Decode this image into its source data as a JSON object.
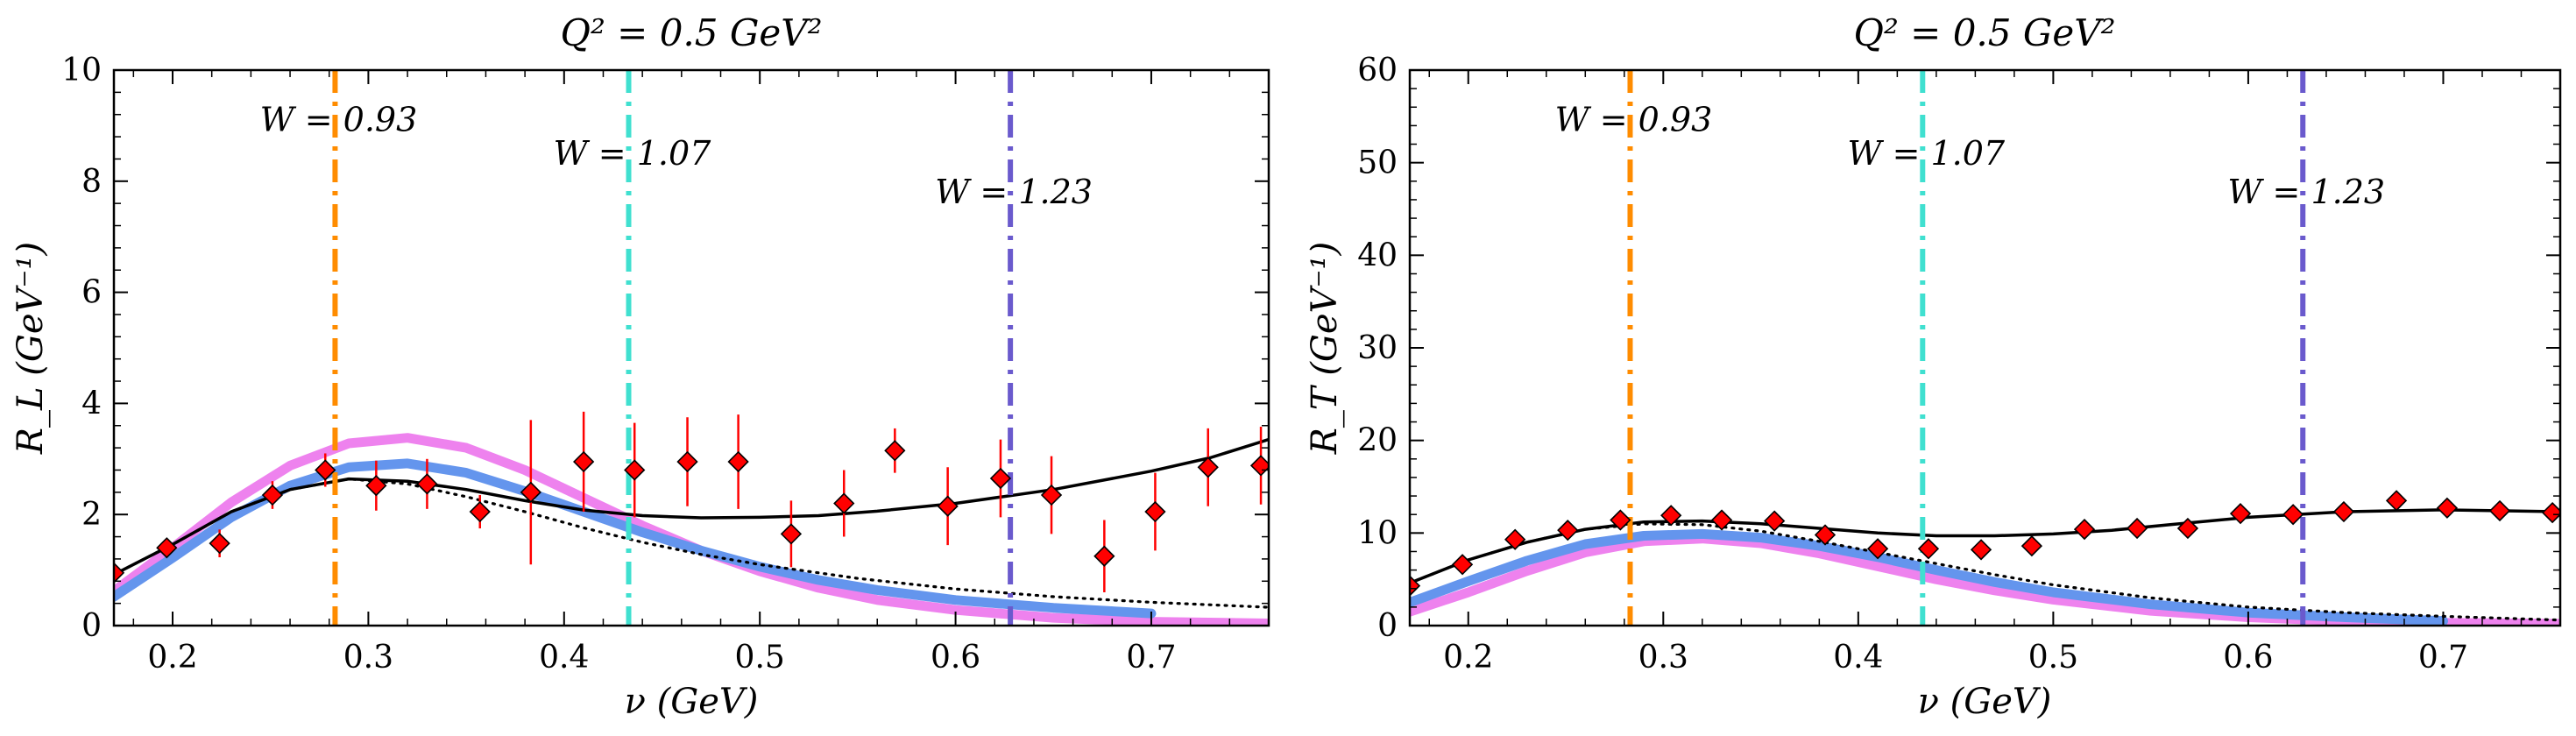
{
  "chart_data": [
    {
      "type": "line",
      "title": "Q² = 0.5 GeV²",
      "xlabel": "ν (GeV)",
      "ylabel": "R_L (GeV⁻¹)",
      "xlim": [
        0.17,
        0.76
      ],
      "ylim": [
        0,
        10
      ],
      "xticks": [
        "0.2",
        "0.3",
        "0.4",
        "0.5",
        "0.6",
        "0.7"
      ],
      "xtick_values": [
        0.2,
        0.3,
        0.4,
        0.5,
        0.6,
        0.7
      ],
      "yticks": [
        "0",
        "2",
        "4",
        "6",
        "8",
        "10"
      ],
      "ytick_values": [
        0,
        2,
        4,
        6,
        8,
        10
      ],
      "grid": false,
      "vlines": [
        {
          "x": 0.283,
          "label": "W = 0.93",
          "label_y": 8.9,
          "color": "#FF8C00"
        },
        {
          "x": 0.433,
          "label": "W = 1.07",
          "label_y": 8.3,
          "color": "#40E0D0"
        },
        {
          "x": 0.628,
          "label": "W = 1.23",
          "label_y": 7.6,
          "color": "#6A5ACD"
        }
      ],
      "series": [
        {
          "style": "pink",
          "color": "#EE82EE",
          "points": [
            [
              0.17,
              0.62
            ],
            [
              0.2,
              1.4
            ],
            [
              0.23,
              2.22
            ],
            [
              0.26,
              2.88
            ],
            [
              0.29,
              3.28
            ],
            [
              0.32,
              3.38
            ],
            [
              0.35,
              3.2
            ],
            [
              0.38,
              2.8
            ],
            [
              0.41,
              2.3
            ],
            [
              0.44,
              1.8
            ],
            [
              0.47,
              1.35
            ],
            [
              0.5,
              0.98
            ],
            [
              0.53,
              0.68
            ],
            [
              0.56,
              0.46
            ],
            [
              0.6,
              0.28
            ],
            [
              0.65,
              0.14
            ],
            [
              0.7,
              0.07
            ],
            [
              0.76,
              0.04
            ]
          ]
        },
        {
          "style": "blue",
          "color": "#6495ED",
          "points": [
            [
              0.17,
              0.52
            ],
            [
              0.2,
              1.22
            ],
            [
              0.23,
              1.95
            ],
            [
              0.26,
              2.52
            ],
            [
              0.29,
              2.85
            ],
            [
              0.32,
              2.92
            ],
            [
              0.35,
              2.75
            ],
            [
              0.38,
              2.42
            ],
            [
              0.41,
              2.05
            ],
            [
              0.44,
              1.68
            ],
            [
              0.47,
              1.35
            ],
            [
              0.5,
              1.06
            ],
            [
              0.53,
              0.82
            ],
            [
              0.56,
              0.64
            ],
            [
              0.6,
              0.46
            ],
            [
              0.65,
              0.32
            ],
            [
              0.7,
              0.22
            ]
          ]
        },
        {
          "style": "dotted",
          "color": "#000000",
          "points": [
            [
              0.17,
              0.92
            ],
            [
              0.2,
              1.46
            ],
            [
              0.23,
              2.05
            ],
            [
              0.26,
              2.45
            ],
            [
              0.29,
              2.64
            ],
            [
              0.32,
              2.55
            ],
            [
              0.35,
              2.32
            ],
            [
              0.38,
              2.05
            ],
            [
              0.41,
              1.76
            ],
            [
              0.44,
              1.5
            ],
            [
              0.47,
              1.28
            ],
            [
              0.5,
              1.1
            ],
            [
              0.55,
              0.85
            ],
            [
              0.6,
              0.66
            ],
            [
              0.65,
              0.52
            ],
            [
              0.7,
              0.42
            ],
            [
              0.76,
              0.33
            ]
          ]
        },
        {
          "style": "solid",
          "color": "#000000",
          "points": [
            [
              0.17,
              0.92
            ],
            [
              0.2,
              1.46
            ],
            [
              0.23,
              2.05
            ],
            [
              0.26,
              2.45
            ],
            [
              0.29,
              2.64
            ],
            [
              0.32,
              2.6
            ],
            [
              0.35,
              2.45
            ],
            [
              0.38,
              2.25
            ],
            [
              0.41,
              2.08
            ],
            [
              0.44,
              1.98
            ],
            [
              0.47,
              1.94
            ],
            [
              0.5,
              1.95
            ],
            [
              0.53,
              1.98
            ],
            [
              0.56,
              2.06
            ],
            [
              0.6,
              2.2
            ],
            [
              0.65,
              2.45
            ],
            [
              0.7,
              2.78
            ],
            [
              0.73,
              3.02
            ],
            [
              0.76,
              3.35
            ]
          ]
        }
      ],
      "data_points": [
        [
          0.17,
          0.95,
          0.18
        ],
        [
          0.197,
          1.4,
          0.15
        ],
        [
          0.224,
          1.48,
          0.25
        ],
        [
          0.251,
          2.35,
          0.25
        ],
        [
          0.278,
          2.8,
          0.3
        ],
        [
          0.304,
          2.52,
          0.45
        ],
        [
          0.33,
          2.55,
          0.45
        ],
        [
          0.357,
          2.05,
          0.3
        ],
        [
          0.383,
          2.4,
          1.3
        ],
        [
          0.41,
          2.95,
          0.9
        ],
        [
          0.436,
          2.8,
          0.85
        ],
        [
          0.463,
          2.95,
          0.8
        ],
        [
          0.489,
          2.95,
          0.85
        ],
        [
          0.516,
          1.65,
          0.6
        ],
        [
          0.543,
          2.2,
          0.6
        ],
        [
          0.569,
          3.15,
          0.4
        ],
        [
          0.596,
          2.15,
          0.7
        ],
        [
          0.623,
          2.65,
          0.7
        ],
        [
          0.649,
          2.35,
          0.7
        ],
        [
          0.676,
          1.25,
          0.65
        ],
        [
          0.702,
          2.05,
          0.7
        ],
        [
          0.729,
          2.85,
          0.7
        ],
        [
          0.756,
          2.88,
          0.7
        ]
      ]
    },
    {
      "type": "line",
      "title": "Q² = 0.5 GeV²",
      "xlabel": "ν (GeV)",
      "ylabel": "R_T (GeV⁻¹)",
      "xlim": [
        0.17,
        0.76
      ],
      "ylim": [
        0,
        60
      ],
      "xticks": [
        "0.2",
        "0.3",
        "0.4",
        "0.5",
        "0.6",
        "0.7"
      ],
      "xtick_values": [
        0.2,
        0.3,
        0.4,
        0.5,
        0.6,
        0.7
      ],
      "yticks": [
        "0",
        "10",
        "20",
        "30",
        "40",
        "50",
        "60"
      ],
      "ytick_values": [
        0,
        10,
        20,
        30,
        40,
        50,
        60
      ],
      "grid": false,
      "vlines": [
        {
          "x": 0.283,
          "label": "W = 0.93",
          "label_y": 53.4,
          "color": "#FF8C00"
        },
        {
          "x": 0.433,
          "label": "W = 1.07",
          "label_y": 49.8,
          "color": "#40E0D0"
        },
        {
          "x": 0.628,
          "label": "W = 1.23",
          "label_y": 45.6,
          "color": "#6A5ACD"
        }
      ],
      "series": [
        {
          "style": "pink",
          "color": "#EE82EE",
          "points": [
            [
              0.17,
              1.5
            ],
            [
              0.2,
              3.6
            ],
            [
              0.23,
              5.9
            ],
            [
              0.26,
              7.9
            ],
            [
              0.29,
              9.1
            ],
            [
              0.32,
              9.4
            ],
            [
              0.35,
              8.9
            ],
            [
              0.38,
              7.8
            ],
            [
              0.41,
              6.4
            ],
            [
              0.44,
              5.0
            ],
            [
              0.47,
              3.8
            ],
            [
              0.5,
              2.8
            ],
            [
              0.55,
              1.6
            ],
            [
              0.6,
              0.9
            ],
            [
              0.65,
              0.5
            ],
            [
              0.7,
              0.3
            ],
            [
              0.76,
              0.2
            ]
          ]
        },
        {
          "style": "blue",
          "color": "#6495ED",
          "points": [
            [
              0.17,
              2.5
            ],
            [
              0.2,
              4.8
            ],
            [
              0.23,
              7.0
            ],
            [
              0.26,
              8.8
            ],
            [
              0.29,
              9.7
            ],
            [
              0.32,
              9.9
            ],
            [
              0.35,
              9.5
            ],
            [
              0.38,
              8.6
            ],
            [
              0.41,
              7.4
            ],
            [
              0.44,
              6.0
            ],
            [
              0.47,
              4.7
            ],
            [
              0.5,
              3.6
            ],
            [
              0.55,
              2.3
            ],
            [
              0.6,
              1.4
            ],
            [
              0.65,
              0.9
            ],
            [
              0.7,
              0.5
            ]
          ]
        },
        {
          "style": "dotted",
          "color": "#000000",
          "points": [
            [
              0.17,
              4.6
            ],
            [
              0.2,
              7.1
            ],
            [
              0.23,
              9.0
            ],
            [
              0.26,
              10.4
            ],
            [
              0.29,
              11.0
            ],
            [
              0.32,
              10.9
            ],
            [
              0.35,
              10.2
            ],
            [
              0.38,
              9.1
            ],
            [
              0.41,
              7.9
            ],
            [
              0.44,
              6.7
            ],
            [
              0.47,
              5.5
            ],
            [
              0.5,
              4.4
            ],
            [
              0.55,
              3.0
            ],
            [
              0.6,
              2.0
            ],
            [
              0.65,
              1.4
            ],
            [
              0.7,
              1.0
            ],
            [
              0.76,
              0.6
            ]
          ]
        },
        {
          "style": "solid",
          "color": "#000000",
          "points": [
            [
              0.17,
              4.6
            ],
            [
              0.2,
              7.1
            ],
            [
              0.23,
              9.0
            ],
            [
              0.26,
              10.4
            ],
            [
              0.29,
              11.2
            ],
            [
              0.32,
              11.3
            ],
            [
              0.35,
              11.0
            ],
            [
              0.38,
              10.5
            ],
            [
              0.41,
              10.0
            ],
            [
              0.44,
              9.7
            ],
            [
              0.47,
              9.7
            ],
            [
              0.5,
              9.9
            ],
            [
              0.53,
              10.3
            ],
            [
              0.56,
              10.9
            ],
            [
              0.6,
              11.7
            ],
            [
              0.65,
              12.3
            ],
            [
              0.7,
              12.5
            ],
            [
              0.76,
              12.3
            ]
          ]
        }
      ],
      "data_points": [
        [
          0.17,
          4.3,
          0.5
        ],
        [
          0.197,
          6.6,
          0.5
        ],
        [
          0.224,
          9.3,
          0.5
        ],
        [
          0.251,
          10.3,
          0.5
        ],
        [
          0.278,
          11.4,
          0.6
        ],
        [
          0.304,
          11.9,
          0.6
        ],
        [
          0.33,
          11.4,
          0.6
        ],
        [
          0.357,
          11.3,
          0.6
        ],
        [
          0.383,
          9.8,
          0.6
        ],
        [
          0.41,
          8.3,
          0.6
        ],
        [
          0.436,
          8.3,
          0.6
        ],
        [
          0.463,
          8.2,
          0.6
        ],
        [
          0.489,
          8.6,
          0.6
        ],
        [
          0.516,
          10.4,
          0.6
        ],
        [
          0.543,
          10.5,
          0.6
        ],
        [
          0.569,
          10.5,
          0.6
        ],
        [
          0.596,
          12.1,
          0.6
        ],
        [
          0.623,
          12.0,
          0.6
        ],
        [
          0.649,
          12.3,
          0.6
        ],
        [
          0.676,
          13.5,
          0.6
        ],
        [
          0.702,
          12.7,
          0.6
        ],
        [
          0.729,
          12.4,
          0.6
        ],
        [
          0.756,
          12.2,
          0.6
        ]
      ]
    }
  ]
}
